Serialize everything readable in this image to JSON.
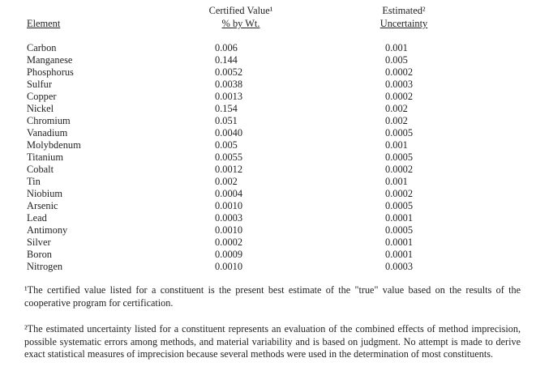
{
  "table": {
    "headers": {
      "element": "Element",
      "certified_value_line1": "Certified Value¹",
      "certified_value_line2": "% by Wt.",
      "estimated_line1": "Estimated²",
      "estimated_line2": "Uncertainty"
    },
    "rows": [
      {
        "element": "Carbon",
        "certified": "0.006",
        "uncertainty": "0.001"
      },
      {
        "element": "Manganese",
        "certified": "0.144",
        "uncertainty": "0.005"
      },
      {
        "element": "Phosphorus",
        "certified": "0.0052",
        "uncertainty": "0.0002"
      },
      {
        "element": "Sulfur",
        "certified": "0.0038",
        "uncertainty": "0.0003"
      },
      {
        "element": "Copper",
        "certified": "0.0013",
        "uncertainty": "0.0002"
      },
      {
        "element": "Nickel",
        "certified": "0.154",
        "uncertainty": "0.002"
      },
      {
        "element": "Chromium",
        "certified": "0.051",
        "uncertainty": "0.002"
      },
      {
        "element": "Vanadium",
        "certified": "0.0040",
        "uncertainty": "0.0005"
      },
      {
        "element": "Molybdenum",
        "certified": "0.005",
        "uncertainty": "0.001"
      },
      {
        "element": "Titanium",
        "certified": "0.0055",
        "uncertainty": "0.0005"
      },
      {
        "element": "Cobalt",
        "certified": "0.0012",
        "uncertainty": "0.0002"
      },
      {
        "element": "Tin",
        "certified": "0.002",
        "uncertainty": "0.001"
      },
      {
        "element": "Niobium",
        "certified": "0.0004",
        "uncertainty": "0.0002"
      },
      {
        "element": "Arsenic",
        "certified": "0.0010",
        "uncertainty": "0.0005"
      },
      {
        "element": "Lead",
        "certified": "0.0003",
        "uncertainty": "0.0001"
      },
      {
        "element": "Antimony",
        "certified": "0.0010",
        "uncertainty": "0.0005"
      },
      {
        "element": "Silver",
        "certified": "0.0002",
        "uncertainty": "0.0001"
      },
      {
        "element": "Boron",
        "certified": "0.0009",
        "uncertainty": "0.0001"
      },
      {
        "element": "Nitrogen",
        "certified": "0.0010",
        "uncertainty": "0.0003"
      }
    ]
  },
  "footnotes": [
    "¹The certified value listed for a constituent is the present best estimate of the \"true\" value based on the results of the cooperative program for certification.",
    "²The estimated uncertainty listed for a constituent represents an evaluation of the combined effects of method imprecision, possible systematic errors among methods, and material variability and is based on judgment.  No attempt is made to derive exact statistical measures of imprecision because several methods were used in the determination of most constituents."
  ]
}
